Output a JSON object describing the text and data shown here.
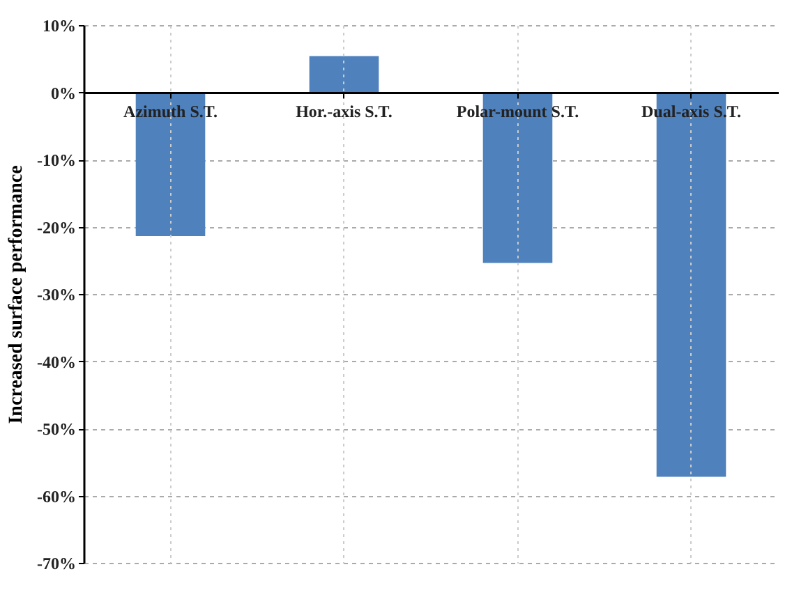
{
  "chart_data": {
    "type": "bar",
    "ylabel": "Increased surface performance",
    "categories": [
      "Azimuth S.T.",
      "Hor.-axis S.T.",
      "Polar-mount S.T.",
      "Dual-axis S.T."
    ],
    "values": [
      -21.4,
      5.4,
      -25.4,
      -57.2
    ],
    "color": "#4f81bd",
    "ylim": [
      -70,
      10
    ],
    "yticks": [
      {
        "value": 10,
        "label": "10%"
      },
      {
        "value": 0,
        "label": "0%"
      },
      {
        "value": -10,
        "label": "-10%"
      },
      {
        "value": -20,
        "label": "-20%"
      },
      {
        "value": -30,
        "label": "-30%"
      },
      {
        "value": -40,
        "label": "-40%"
      },
      {
        "value": -50,
        "label": "-50%"
      },
      {
        "value": -60,
        "label": "-60%"
      },
      {
        "value": -70,
        "label": "-70%"
      }
    ],
    "grid": true
  }
}
